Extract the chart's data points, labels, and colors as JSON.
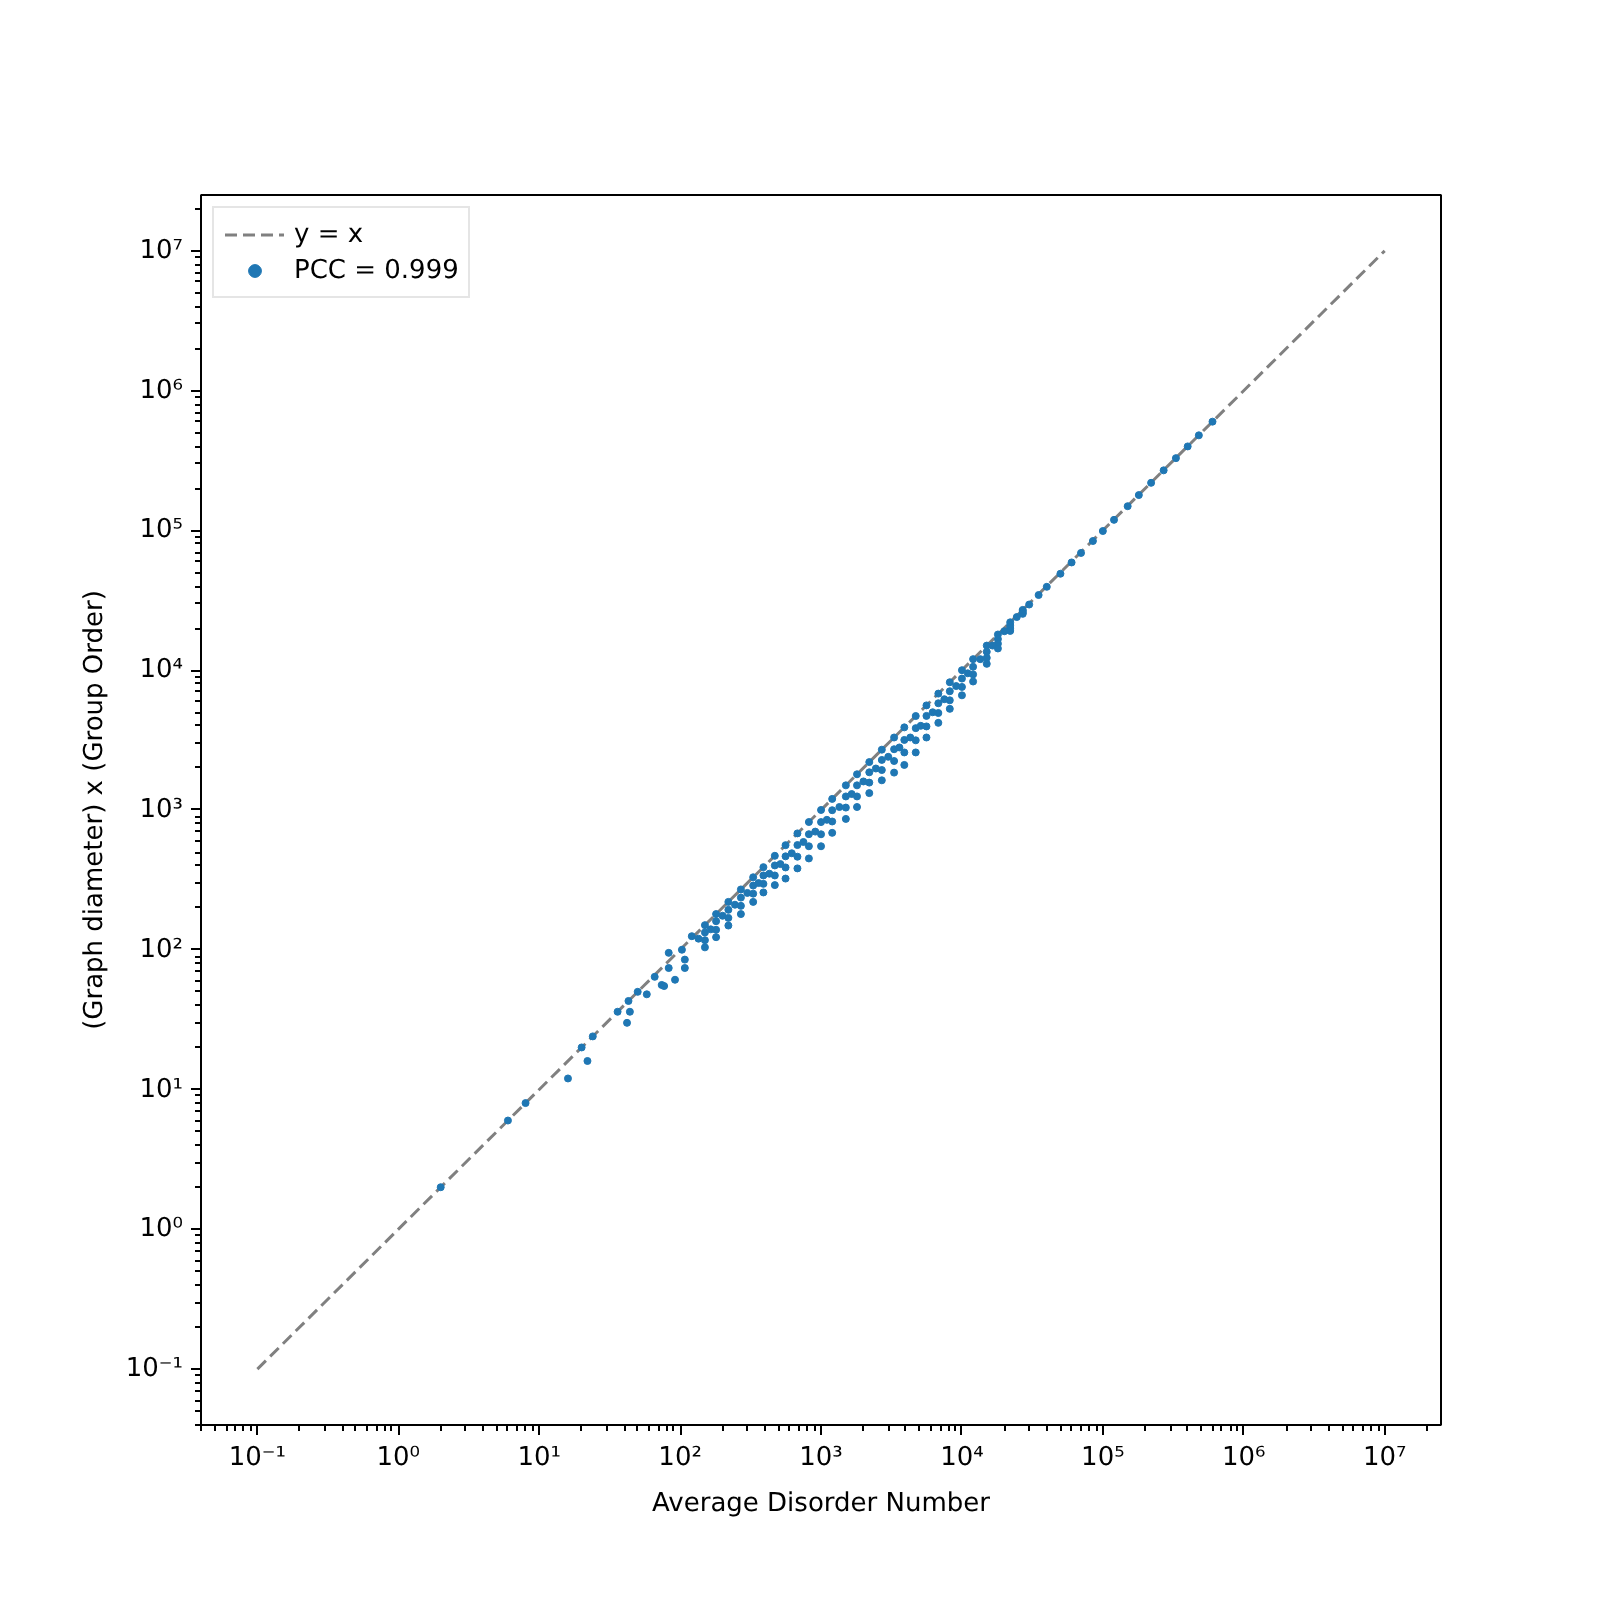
{
  "chart_data": {
    "type": "scatter",
    "xlabel": "Average Disorder Number",
    "ylabel": "(Graph diameter) x (Group Order)",
    "log": "xy",
    "xlim": [
      0.0398,
      25100000
    ],
    "ylim": [
      0.0398,
      25100000
    ],
    "xticks": [
      {
        "value": 0.04,
        "label": null
      },
      {
        "value": 0.05,
        "label": null
      },
      {
        "value": 0.06,
        "label": null
      },
      {
        "value": 0.07,
        "label": null
      },
      {
        "value": 0.08,
        "label": null
      },
      {
        "value": 0.09,
        "label": null
      },
      {
        "value": 0.1,
        "label": "10⁻¹"
      },
      {
        "value": 0.2,
        "label": null
      },
      {
        "value": 0.3,
        "label": null
      },
      {
        "value": 0.4,
        "label": null
      },
      {
        "value": 0.5,
        "label": null
      },
      {
        "value": 0.6,
        "label": null
      },
      {
        "value": 0.7,
        "label": null
      },
      {
        "value": 0.8,
        "label": null
      },
      {
        "value": 0.9,
        "label": null
      },
      {
        "value": 1,
        "label": "10⁰"
      },
      {
        "value": 2,
        "label": null
      },
      {
        "value": 3,
        "label": null
      },
      {
        "value": 4,
        "label": null
      },
      {
        "value": 5,
        "label": null
      },
      {
        "value": 6,
        "label": null
      },
      {
        "value": 7,
        "label": null
      },
      {
        "value": 8,
        "label": null
      },
      {
        "value": 9,
        "label": null
      },
      {
        "value": 10,
        "label": "10¹"
      },
      {
        "value": 20,
        "label": null
      },
      {
        "value": 30,
        "label": null
      },
      {
        "value": 40,
        "label": null
      },
      {
        "value": 50,
        "label": null
      },
      {
        "value": 60,
        "label": null
      },
      {
        "value": 70,
        "label": null
      },
      {
        "value": 80,
        "label": null
      },
      {
        "value": 90,
        "label": null
      },
      {
        "value": 100,
        "label": "10²"
      },
      {
        "value": 200,
        "label": null
      },
      {
        "value": 300,
        "label": null
      },
      {
        "value": 400,
        "label": null
      },
      {
        "value": 500,
        "label": null
      },
      {
        "value": 600,
        "label": null
      },
      {
        "value": 700,
        "label": null
      },
      {
        "value": 800,
        "label": null
      },
      {
        "value": 900,
        "label": null
      },
      {
        "value": 1000,
        "label": "10³"
      },
      {
        "value": 2000,
        "label": null
      },
      {
        "value": 3000,
        "label": null
      },
      {
        "value": 4000,
        "label": null
      },
      {
        "value": 5000,
        "label": null
      },
      {
        "value": 6000,
        "label": null
      },
      {
        "value": 7000,
        "label": null
      },
      {
        "value": 8000,
        "label": null
      },
      {
        "value": 9000,
        "label": null
      },
      {
        "value": 10000,
        "label": "10⁴"
      },
      {
        "value": 20000,
        "label": null
      },
      {
        "value": 30000,
        "label": null
      },
      {
        "value": 40000,
        "label": null
      },
      {
        "value": 50000,
        "label": null
      },
      {
        "value": 60000,
        "label": null
      },
      {
        "value": 70000,
        "label": null
      },
      {
        "value": 80000,
        "label": null
      },
      {
        "value": 90000,
        "label": null
      },
      {
        "value": 100000,
        "label": "10⁵"
      },
      {
        "value": 200000,
        "label": null
      },
      {
        "value": 300000,
        "label": null
      },
      {
        "value": 400000,
        "label": null
      },
      {
        "value": 500000,
        "label": null
      },
      {
        "value": 600000,
        "label": null
      },
      {
        "value": 700000,
        "label": null
      },
      {
        "value": 800000,
        "label": null
      },
      {
        "value": 900000,
        "label": null
      },
      {
        "value": 1000000,
        "label": "10⁶"
      },
      {
        "value": 2000000,
        "label": null
      },
      {
        "value": 3000000,
        "label": null
      },
      {
        "value": 4000000,
        "label": null
      },
      {
        "value": 5000000,
        "label": null
      },
      {
        "value": 6000000,
        "label": null
      },
      {
        "value": 7000000,
        "label": null
      },
      {
        "value": 8000000,
        "label": null
      },
      {
        "value": 9000000,
        "label": null
      },
      {
        "value": 10000000,
        "label": "10⁷"
      },
      {
        "value": 20000000,
        "label": null
      }
    ],
    "yticks": [
      {
        "value": 0.04,
        "label": null
      },
      {
        "value": 0.05,
        "label": null
      },
      {
        "value": 0.06,
        "label": null
      },
      {
        "value": 0.07,
        "label": null
      },
      {
        "value": 0.08,
        "label": null
      },
      {
        "value": 0.09,
        "label": null
      },
      {
        "value": 0.1,
        "label": "10⁻¹"
      },
      {
        "value": 0.2,
        "label": null
      },
      {
        "value": 0.3,
        "label": null
      },
      {
        "value": 0.4,
        "label": null
      },
      {
        "value": 0.5,
        "label": null
      },
      {
        "value": 0.6,
        "label": null
      },
      {
        "value": 0.7,
        "label": null
      },
      {
        "value": 0.8,
        "label": null
      },
      {
        "value": 0.9,
        "label": null
      },
      {
        "value": 1,
        "label": "10⁰"
      },
      {
        "value": 2,
        "label": null
      },
      {
        "value": 3,
        "label": null
      },
      {
        "value": 4,
        "label": null
      },
      {
        "value": 5,
        "label": null
      },
      {
        "value": 6,
        "label": null
      },
      {
        "value": 7,
        "label": null
      },
      {
        "value": 8,
        "label": null
      },
      {
        "value": 9,
        "label": null
      },
      {
        "value": 10,
        "label": "10¹"
      },
      {
        "value": 20,
        "label": null
      },
      {
        "value": 30,
        "label": null
      },
      {
        "value": 40,
        "label": null
      },
      {
        "value": 50,
        "label": null
      },
      {
        "value": 60,
        "label": null
      },
      {
        "value": 70,
        "label": null
      },
      {
        "value": 80,
        "label": null
      },
      {
        "value": 90,
        "label": null
      },
      {
        "value": 100,
        "label": "10²"
      },
      {
        "value": 200,
        "label": null
      },
      {
        "value": 300,
        "label": null
      },
      {
        "value": 400,
        "label": null
      },
      {
        "value": 500,
        "label": null
      },
      {
        "value": 600,
        "label": null
      },
      {
        "value": 700,
        "label": null
      },
      {
        "value": 800,
        "label": null
      },
      {
        "value": 900,
        "label": null
      },
      {
        "value": 1000,
        "label": "10³"
      },
      {
        "value": 2000,
        "label": null
      },
      {
        "value": 3000,
        "label": null
      },
      {
        "value": 4000,
        "label": null
      },
      {
        "value": 5000,
        "label": null
      },
      {
        "value": 6000,
        "label": null
      },
      {
        "value": 7000,
        "label": null
      },
      {
        "value": 8000,
        "label": null
      },
      {
        "value": 9000,
        "label": null
      },
      {
        "value": 10000,
        "label": "10⁴"
      },
      {
        "value": 20000,
        "label": null
      },
      {
        "value": 30000,
        "label": null
      },
      {
        "value": 40000,
        "label": null
      },
      {
        "value": 50000,
        "label": null
      },
      {
        "value": 60000,
        "label": null
      },
      {
        "value": 70000,
        "label": null
      },
      {
        "value": 80000,
        "label": null
      },
      {
        "value": 90000,
        "label": null
      },
      {
        "value": 100000,
        "label": "10⁵"
      },
      {
        "value": 200000,
        "label": null
      },
      {
        "value": 300000,
        "label": null
      },
      {
        "value": 400000,
        "label": null
      },
      {
        "value": 500000,
        "label": null
      },
      {
        "value": 600000,
        "label": null
      },
      {
        "value": 700000,
        "label": null
      },
      {
        "value": 800000,
        "label": null
      },
      {
        "value": 900000,
        "label": null
      },
      {
        "value": 1000000,
        "label": "10⁶"
      },
      {
        "value": 2000000,
        "label": null
      },
      {
        "value": 3000000,
        "label": null
      },
      {
        "value": 4000000,
        "label": null
      },
      {
        "value": 5000000,
        "label": null
      },
      {
        "value": 6000000,
        "label": null
      },
      {
        "value": 7000000,
        "label": null
      },
      {
        "value": 8000000,
        "label": null
      },
      {
        "value": 9000000,
        "label": null
      },
      {
        "value": 10000000,
        "label": "10⁷"
      },
      {
        "value": 20000000,
        "label": null
      }
    ],
    "grid": false,
    "legend": "top left",
    "line_style": "dashed",
    "series": [
      {
        "name": "y = x",
        "type": "line",
        "marker": "none",
        "color": "#808080",
        "x": [
          0.1,
          10000000
        ],
        "values": [
          0.1,
          10000000
        ]
      },
      {
        "name": "PCC = 0.999",
        "marker": "circle",
        "color": "#1f77b4",
        "x": [
          2,
          6,
          8,
          16,
          20,
          22,
          24,
          36,
          42,
          43,
          44,
          50,
          58,
          66,
          74,
          77,
          83,
          83,
          92,
          103,
          108,
          108,
          121,
          150,
          150,
          150,
          150,
          180,
          180,
          180,
          180,
          220,
          220,
          220,
          220,
          270,
          270,
          270,
          270,
          330,
          330,
          330,
          330,
          390,
          390,
          390,
          390,
          470,
          470,
          470,
          470,
          560,
          560,
          560,
          560,
          680,
          680,
          680,
          680,
          820,
          820,
          820,
          820,
          1000,
          1000,
          1000,
          1000,
          1200,
          1200,
          1200,
          1200,
          1500,
          1500,
          1500,
          1500,
          1800,
          1800,
          1800,
          1800,
          2200,
          2200,
          2200,
          2200,
          2700,
          2700,
          2700,
          2700,
          3300,
          3300,
          3300,
          3300,
          3900,
          3900,
          3900,
          3900,
          4700,
          4700,
          4700,
          4700,
          5600,
          5600,
          5600,
          5600,
          6800,
          6800,
          6800,
          6800,
          8200,
          8200,
          8200,
          8200,
          10000,
          10000,
          10000,
          10000,
          12000,
          12000,
          12000,
          12000,
          15000,
          15000,
          15000,
          15000,
          18000,
          18000,
          18000,
          18000,
          22000,
          22000,
          22000,
          22000,
          27000,
          27000,
          27000,
          27000,
          135,
          165,
          200,
          245,
          300,
          360,
          430,
          515,
          620,
          750,
          910,
          1100,
          1350,
          1650,
          2000,
          2450,
          3000,
          3600,
          4300,
          5100,
          6200,
          7500,
          9100,
          11000,
          13500,
          16500,
          20000,
          24500,
          30000,
          35000,
          40000,
          50000,
          60000,
          70000,
          85000,
          100000,
          120000,
          150000,
          180000,
          220000,
          270000,
          330000,
          400000,
          480000,
          600000
        ],
        "values": [
          2,
          6,
          8,
          12,
          20,
          16,
          24,
          36,
          30,
          43,
          36,
          50,
          48,
          64,
          56,
          55,
          74,
          95,
          61,
          100,
          74,
          85,
          125,
          150,
          133,
          117,
          104,
          180,
          160,
          139,
          123,
          220,
          193,
          169,
          149,
          270,
          236,
          206,
          180,
          330,
          288,
          252,
          220,
          390,
          340,
          296,
          257,
          470,
          401,
          340,
          290,
          560,
          466,
          388,
          323,
          680,
          561,
          463,
          382,
          820,
          671,
          550,
          450,
          1000,
          819,
          670,
          550,
          1200,
          996,
          827,
          686,
          1500,
          1250,
          1040,
          863,
          1800,
          1500,
          1250,
          1050,
          2200,
          1860,
          1570,
          1320,
          2700,
          2280,
          1930,
          1630,
          3300,
          2720,
          2240,
          1850,
          3900,
          3170,
          2580,
          2100,
          4700,
          3850,
          3150,
          2580,
          5600,
          4710,
          3960,
          3300,
          6800,
          5800,
          4940,
          4200,
          8200,
          7070,
          6090,
          5290,
          10000,
          8710,
          7590,
          6610,
          12000,
          10580,
          9330,
          8300,
          15000,
          13550,
          12250,
          11100,
          18000,
          16690,
          15480,
          14300,
          22000,
          21000,
          20000,
          19100,
          27000,
          26500,
          25800,
          25300,
          120,
          140,
          175,
          210,
          255,
          300,
          350,
          410,
          490,
          590,
          700,
          850,
          1050,
          1300,
          1600,
          1980,
          2400,
          2800,
          3300,
          4000,
          5000,
          6200,
          7700,
          9500,
          12000,
          15000,
          19000,
          24000,
          29500,
          34500,
          39500,
          49000,
          59000,
          69000,
          84000,
          99000,
          119000,
          149000,
          179000,
          219000,
          269000,
          329000,
          399000,
          479000,
          600000
        ]
      }
    ]
  }
}
